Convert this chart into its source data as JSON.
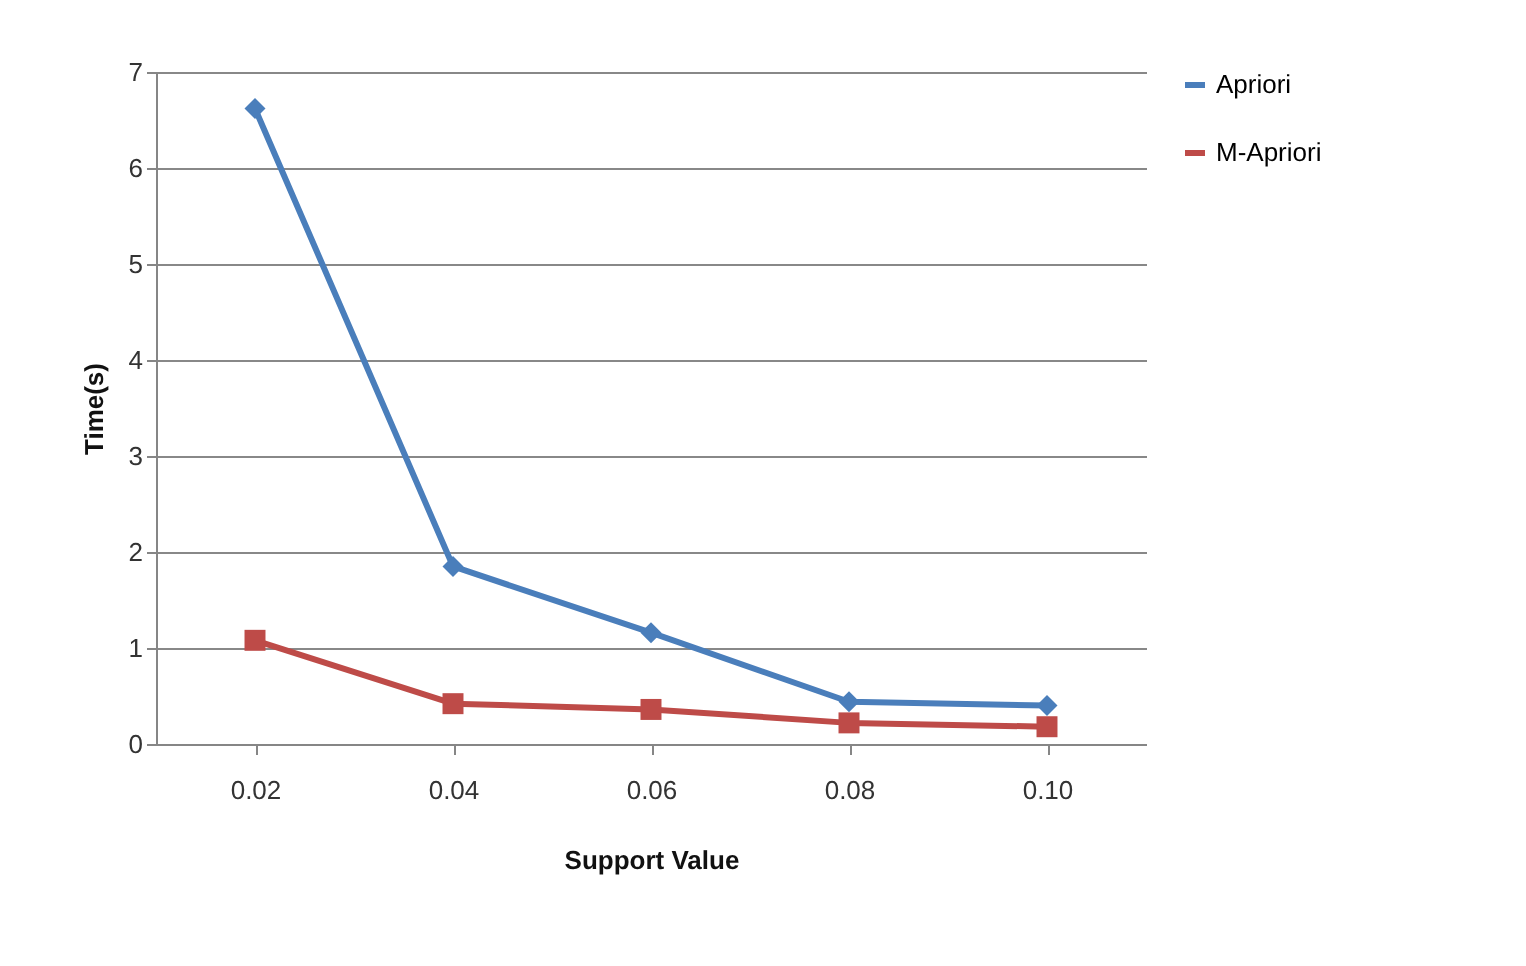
{
  "chart_data": {
    "type": "line",
    "xlabel": "Support Value",
    "ylabel": "Time(s)",
    "categories": [
      "0.02",
      "0.04",
      "0.06",
      "0.08",
      "0.10"
    ],
    "series": [
      {
        "name": "Apriori",
        "color": "#4a7ebb",
        "marker": "diamond",
        "values": [
          6.62,
          1.85,
          1.16,
          0.44,
          0.4
        ]
      },
      {
        "name": "M-Apriori",
        "color": "#be4b48",
        "marker": "square",
        "values": [
          1.08,
          0.42,
          0.36,
          0.22,
          0.18
        ]
      }
    ],
    "ylim": [
      0,
      7
    ],
    "yticks": [
      0,
      1,
      2,
      3,
      4,
      5,
      6,
      7
    ],
    "grid": "y",
    "legend": "right"
  }
}
